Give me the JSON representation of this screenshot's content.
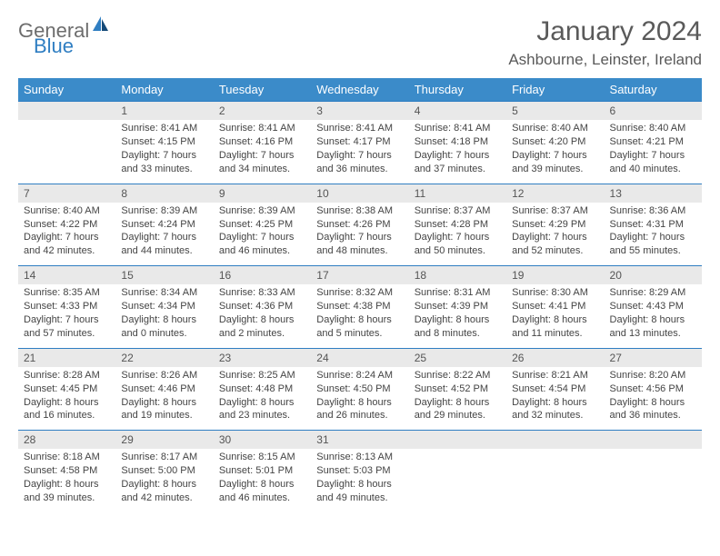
{
  "logo": {
    "part1": "General",
    "part2": "Blue"
  },
  "title": "January 2024",
  "location": "Ashbourne, Leinster, Ireland",
  "weekdays": [
    "Sunday",
    "Monday",
    "Tuesday",
    "Wednesday",
    "Thursday",
    "Friday",
    "Saturday"
  ],
  "colors": {
    "header_bg": "#3b8bc9",
    "header_text": "#ffffff",
    "daynum_bg": "#e9e9e9",
    "rule": "#2f7ec2",
    "logo_gray": "#6d6d6d",
    "logo_blue": "#2f7ec2"
  },
  "typography": {
    "title_fontsize": 30,
    "location_fontsize": 17,
    "weekday_fontsize": 13,
    "daynum_fontsize": 12,
    "detail_fontsize": 11
  },
  "weeks": [
    {
      "nums": [
        "",
        "1",
        "2",
        "3",
        "4",
        "5",
        "6"
      ],
      "cells": [
        null,
        {
          "sunrise": "Sunrise: 8:41 AM",
          "sunset": "Sunset: 4:15 PM",
          "daylight": "Daylight: 7 hours and 33 minutes."
        },
        {
          "sunrise": "Sunrise: 8:41 AM",
          "sunset": "Sunset: 4:16 PM",
          "daylight": "Daylight: 7 hours and 34 minutes."
        },
        {
          "sunrise": "Sunrise: 8:41 AM",
          "sunset": "Sunset: 4:17 PM",
          "daylight": "Daylight: 7 hours and 36 minutes."
        },
        {
          "sunrise": "Sunrise: 8:41 AM",
          "sunset": "Sunset: 4:18 PM",
          "daylight": "Daylight: 7 hours and 37 minutes."
        },
        {
          "sunrise": "Sunrise: 8:40 AM",
          "sunset": "Sunset: 4:20 PM",
          "daylight": "Daylight: 7 hours and 39 minutes."
        },
        {
          "sunrise": "Sunrise: 8:40 AM",
          "sunset": "Sunset: 4:21 PM",
          "daylight": "Daylight: 7 hours and 40 minutes."
        }
      ]
    },
    {
      "nums": [
        "7",
        "8",
        "9",
        "10",
        "11",
        "12",
        "13"
      ],
      "cells": [
        {
          "sunrise": "Sunrise: 8:40 AM",
          "sunset": "Sunset: 4:22 PM",
          "daylight": "Daylight: 7 hours and 42 minutes."
        },
        {
          "sunrise": "Sunrise: 8:39 AM",
          "sunset": "Sunset: 4:24 PM",
          "daylight": "Daylight: 7 hours and 44 minutes."
        },
        {
          "sunrise": "Sunrise: 8:39 AM",
          "sunset": "Sunset: 4:25 PM",
          "daylight": "Daylight: 7 hours and 46 minutes."
        },
        {
          "sunrise": "Sunrise: 8:38 AM",
          "sunset": "Sunset: 4:26 PM",
          "daylight": "Daylight: 7 hours and 48 minutes."
        },
        {
          "sunrise": "Sunrise: 8:37 AM",
          "sunset": "Sunset: 4:28 PM",
          "daylight": "Daylight: 7 hours and 50 minutes."
        },
        {
          "sunrise": "Sunrise: 8:37 AM",
          "sunset": "Sunset: 4:29 PM",
          "daylight": "Daylight: 7 hours and 52 minutes."
        },
        {
          "sunrise": "Sunrise: 8:36 AM",
          "sunset": "Sunset: 4:31 PM",
          "daylight": "Daylight: 7 hours and 55 minutes."
        }
      ]
    },
    {
      "nums": [
        "14",
        "15",
        "16",
        "17",
        "18",
        "19",
        "20"
      ],
      "cells": [
        {
          "sunrise": "Sunrise: 8:35 AM",
          "sunset": "Sunset: 4:33 PM",
          "daylight": "Daylight: 7 hours and 57 minutes."
        },
        {
          "sunrise": "Sunrise: 8:34 AM",
          "sunset": "Sunset: 4:34 PM",
          "daylight": "Daylight: 8 hours and 0 minutes."
        },
        {
          "sunrise": "Sunrise: 8:33 AM",
          "sunset": "Sunset: 4:36 PM",
          "daylight": "Daylight: 8 hours and 2 minutes."
        },
        {
          "sunrise": "Sunrise: 8:32 AM",
          "sunset": "Sunset: 4:38 PM",
          "daylight": "Daylight: 8 hours and 5 minutes."
        },
        {
          "sunrise": "Sunrise: 8:31 AM",
          "sunset": "Sunset: 4:39 PM",
          "daylight": "Daylight: 8 hours and 8 minutes."
        },
        {
          "sunrise": "Sunrise: 8:30 AM",
          "sunset": "Sunset: 4:41 PM",
          "daylight": "Daylight: 8 hours and 11 minutes."
        },
        {
          "sunrise": "Sunrise: 8:29 AM",
          "sunset": "Sunset: 4:43 PM",
          "daylight": "Daylight: 8 hours and 13 minutes."
        }
      ]
    },
    {
      "nums": [
        "21",
        "22",
        "23",
        "24",
        "25",
        "26",
        "27"
      ],
      "cells": [
        {
          "sunrise": "Sunrise: 8:28 AM",
          "sunset": "Sunset: 4:45 PM",
          "daylight": "Daylight: 8 hours and 16 minutes."
        },
        {
          "sunrise": "Sunrise: 8:26 AM",
          "sunset": "Sunset: 4:46 PM",
          "daylight": "Daylight: 8 hours and 19 minutes."
        },
        {
          "sunrise": "Sunrise: 8:25 AM",
          "sunset": "Sunset: 4:48 PM",
          "daylight": "Daylight: 8 hours and 23 minutes."
        },
        {
          "sunrise": "Sunrise: 8:24 AM",
          "sunset": "Sunset: 4:50 PM",
          "daylight": "Daylight: 8 hours and 26 minutes."
        },
        {
          "sunrise": "Sunrise: 8:22 AM",
          "sunset": "Sunset: 4:52 PM",
          "daylight": "Daylight: 8 hours and 29 minutes."
        },
        {
          "sunrise": "Sunrise: 8:21 AM",
          "sunset": "Sunset: 4:54 PM",
          "daylight": "Daylight: 8 hours and 32 minutes."
        },
        {
          "sunrise": "Sunrise: 8:20 AM",
          "sunset": "Sunset: 4:56 PM",
          "daylight": "Daylight: 8 hours and 36 minutes."
        }
      ]
    },
    {
      "nums": [
        "28",
        "29",
        "30",
        "31",
        "",
        "",
        ""
      ],
      "cells": [
        {
          "sunrise": "Sunrise: 8:18 AM",
          "sunset": "Sunset: 4:58 PM",
          "daylight": "Daylight: 8 hours and 39 minutes."
        },
        {
          "sunrise": "Sunrise: 8:17 AM",
          "sunset": "Sunset: 5:00 PM",
          "daylight": "Daylight: 8 hours and 42 minutes."
        },
        {
          "sunrise": "Sunrise: 8:15 AM",
          "sunset": "Sunset: 5:01 PM",
          "daylight": "Daylight: 8 hours and 46 minutes."
        },
        {
          "sunrise": "Sunrise: 8:13 AM",
          "sunset": "Sunset: 5:03 PM",
          "daylight": "Daylight: 8 hours and 49 minutes."
        },
        null,
        null,
        null
      ]
    }
  ]
}
